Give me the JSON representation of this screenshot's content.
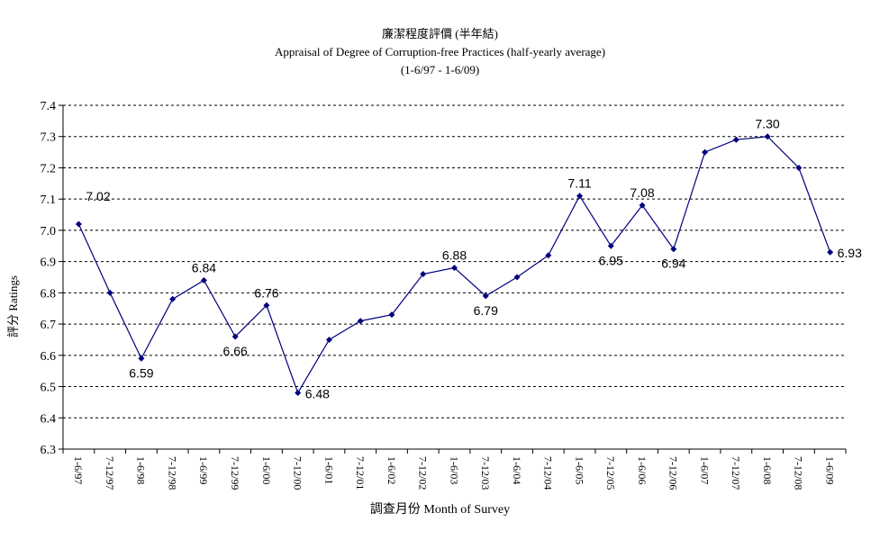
{
  "chart_data": {
    "type": "line",
    "title": "廉潔程度評價 (半年結)",
    "subtitle": "Appraisal of Degree of Corruption-free Practices (half-yearly average)",
    "period": "(1-6/97 - 1-6/09)",
    "xlabel": "調查月份 Month of Survey",
    "ylabel": "評分 Ratings",
    "ylim": [
      6.3,
      7.4
    ],
    "yticks": [
      "6.3",
      "6.4",
      "6.5",
      "6.6",
      "6.7",
      "6.8",
      "6.9",
      "7.0",
      "7.1",
      "7.2",
      "7.3",
      "7.4"
    ],
    "grid": true,
    "line_color": "#000080",
    "categories": [
      "1-6/97",
      "7-12/97",
      "1-6/98",
      "7-12/98",
      "1-6/99",
      "7-12/99",
      "1-6/00",
      "7-12/00",
      "1-6/01",
      "7-12/01",
      "1-6/02",
      "7-12/02",
      "1-6/03",
      "7-12/03",
      "1-6/04",
      "7-12/04",
      "1-6/05",
      "7-12/05",
      "1-6/06",
      "7-12/06",
      "1-6/07",
      "7-12/07",
      "1-6/08",
      "7-12/08",
      "1-6/09"
    ],
    "values": [
      7.02,
      6.8,
      6.59,
      6.78,
      6.84,
      6.66,
      6.76,
      6.48,
      6.65,
      6.71,
      6.73,
      6.86,
      6.88,
      6.79,
      6.85,
      6.92,
      7.11,
      6.95,
      7.08,
      6.94,
      7.25,
      7.29,
      7.3,
      7.2,
      6.93
    ],
    "data_labels": [
      {
        "i": 0,
        "text": "7.02",
        "pos": "above-right"
      },
      {
        "i": 2,
        "text": "6.59",
        "pos": "below"
      },
      {
        "i": 4,
        "text": "6.84",
        "pos": "above"
      },
      {
        "i": 5,
        "text": "6.66",
        "pos": "below"
      },
      {
        "i": 6,
        "text": "6.76",
        "pos": "above"
      },
      {
        "i": 7,
        "text": "6.48",
        "pos": "right"
      },
      {
        "i": 12,
        "text": "6.88",
        "pos": "above"
      },
      {
        "i": 13,
        "text": "6.79",
        "pos": "below"
      },
      {
        "i": 16,
        "text": "7.11",
        "pos": "above"
      },
      {
        "i": 17,
        "text": "6.95",
        "pos": "below"
      },
      {
        "i": 18,
        "text": "7.08",
        "pos": "above"
      },
      {
        "i": 19,
        "text": "6.94",
        "pos": "below"
      },
      {
        "i": 22,
        "text": "7.30",
        "pos": "above"
      },
      {
        "i": 24,
        "text": "6.93",
        "pos": "right"
      }
    ]
  }
}
